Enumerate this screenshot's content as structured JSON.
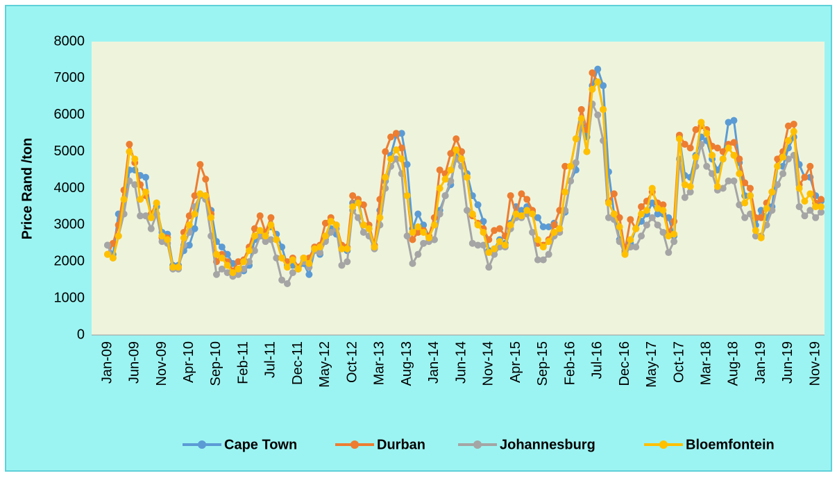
{
  "chart_data": {
    "type": "line",
    "ylabel": "Price Rand /ton",
    "ylim": [
      0,
      8000
    ],
    "yticks": [
      0,
      1000,
      2000,
      3000,
      4000,
      5000,
      6000,
      7000,
      8000
    ],
    "grid": false,
    "legend": "bottom",
    "categories": [
      "Jan-09",
      null,
      null,
      null,
      null,
      "Jun-09",
      null,
      null,
      null,
      null,
      "Nov-09",
      null,
      null,
      null,
      null,
      "Apr-10",
      null,
      null,
      null,
      null,
      "Sep-10",
      null,
      null,
      null,
      null,
      "Feb-11",
      null,
      null,
      null,
      null,
      "Jul-11",
      null,
      null,
      null,
      null,
      "Dec-11",
      null,
      null,
      null,
      null,
      "May-12",
      null,
      null,
      null,
      null,
      "Oct-12",
      null,
      null,
      null,
      null,
      "Mar-13",
      null,
      null,
      null,
      null,
      "Aug-13",
      null,
      null,
      null,
      null,
      "Jan-14",
      null,
      null,
      null,
      null,
      "Jun-14",
      null,
      null,
      null,
      null,
      "Nov-14",
      null,
      null,
      null,
      null,
      "Apr-15",
      null,
      null,
      null,
      null,
      "Sep-15",
      null,
      null,
      null,
      null,
      "Feb-16",
      null,
      null,
      null,
      null,
      "Jul-16",
      null,
      null,
      null,
      null,
      "Dec-16",
      null,
      null,
      null,
      null,
      "May-17",
      null,
      null,
      null,
      null,
      "Oct-17",
      null,
      null,
      null,
      null,
      "Mar-18",
      null,
      null,
      null,
      null,
      "Aug-18",
      null,
      null,
      null,
      null,
      "Jan-19",
      null,
      null,
      null,
      null,
      "Jun-19",
      null,
      null,
      null,
      null,
      "Nov-19",
      null
    ],
    "series": [
      {
        "name": "Cape Town",
        "color": "#5b9bd5",
        "values": [
          2450,
          2200,
          3300,
          3300,
          4500,
          4500,
          4350,
          4300,
          3200,
          3500,
          2800,
          2750,
          1900,
          1900,
          2300,
          2450,
          2900,
          3800,
          3800,
          3400,
          2550,
          2400,
          2200,
          1950,
          1750,
          1750,
          1900,
          2600,
          2800,
          2800,
          2950,
          2750,
          2400,
          1900,
          1900,
          1800,
          1950,
          1650,
          2300,
          2200,
          2600,
          2900,
          2750,
          2400,
          2300,
          3600,
          3700,
          3000,
          2900,
          2400,
          3400,
          4200,
          4900,
          5450,
          5500,
          4650,
          2900,
          3300,
          3000,
          2700,
          2600,
          3400,
          3800,
          4100,
          4900,
          5000,
          4400,
          3800,
          3550,
          3100,
          2300,
          2350,
          2600,
          2500,
          3050,
          3500,
          3400,
          3500,
          3350,
          3200,
          2950,
          2950,
          3050,
          2900,
          3350,
          4200,
          4500,
          5700,
          5400,
          6800,
          7250,
          6800,
          4450,
          3300,
          2600,
          2250,
          2500,
          2900,
          3100,
          3300,
          3600,
          3300,
          3300,
          3200,
          2700,
          5400,
          4350,
          4300,
          4900,
          5400,
          5300,
          4800,
          4500,
          4800,
          5800,
          5850,
          4700,
          3800,
          3800,
          3000,
          3400,
          3200,
          3500,
          4600,
          4600,
          5100,
          5400,
          4650,
          4300,
          4300,
          3800,
          3650
        ]
      },
      {
        "name": "Durban",
        "color": "#ed7d31",
        "values": [
          2200,
          2500,
          3000,
          3950,
          5200,
          4700,
          4100,
          3800,
          3300,
          3600,
          2650,
          2650,
          1850,
          1850,
          2800,
          3250,
          3800,
          4650,
          4250,
          3300,
          2000,
          2200,
          2000,
          1750,
          2000,
          2050,
          2400,
          2900,
          3250,
          2800,
          3200,
          2600,
          2100,
          2000,
          2100,
          1850,
          2100,
          2100,
          2400,
          2450,
          3050,
          3200,
          3000,
          2450,
          2400,
          3800,
          3700,
          3550,
          3000,
          2450,
          3700,
          5000,
          5400,
          5500,
          5100,
          3800,
          2600,
          2800,
          2850,
          2700,
          3200,
          4500,
          4400,
          4950,
          5350,
          5000,
          4300,
          3250,
          3050,
          2900,
          2600,
          2850,
          2900,
          2700,
          3800,
          3300,
          3850,
          3700,
          3400,
          2500,
          2450,
          2600,
          3000,
          3400,
          4600,
          4600,
          5350,
          6150,
          5600,
          7150,
          6900,
          6150,
          3650,
          3850,
          3200,
          2300,
          3150,
          2900,
          3500,
          3650,
          3900,
          3600,
          3550,
          2800,
          3100,
          5450,
          5200,
          5100,
          5600,
          5700,
          5600,
          5150,
          5100,
          5000,
          5200,
          5250,
          4800,
          4150,
          4000,
          3200,
          3200,
          3600,
          3900,
          4800,
          5000,
          5700,
          5750,
          4100,
          4300,
          4600,
          3600,
          3700
        ]
      },
      {
        "name": "Johannesburg",
        "color": "#a5a5a5",
        "values": [
          2450,
          2100,
          2700,
          3300,
          4200,
          4100,
          3250,
          3250,
          2900,
          3300,
          2550,
          2500,
          1800,
          1800,
          2450,
          2800,
          3500,
          3800,
          3700,
          2700,
          1650,
          1800,
          1700,
          1600,
          1650,
          1800,
          2000,
          2300,
          2700,
          2550,
          2600,
          2100,
          1500,
          1400,
          1700,
          1800,
          2000,
          1850,
          2300,
          2250,
          2550,
          2800,
          2900,
          1900,
          2000,
          3400,
          3200,
          2800,
          2700,
          2350,
          3000,
          4000,
          4600,
          4800,
          4400,
          2700,
          1950,
          2200,
          2500,
          2550,
          2600,
          3300,
          3800,
          4200,
          4800,
          4600,
          3400,
          2500,
          2450,
          2450,
          1850,
          2200,
          2400,
          2400,
          2900,
          3200,
          3200,
          3300,
          2800,
          2050,
          2050,
          2200,
          2700,
          2800,
          3400,
          4200,
          4700,
          5800,
          5000,
          6300,
          6000,
          5300,
          3200,
          3150,
          2550,
          2200,
          2400,
          2400,
          2700,
          3000,
          3200,
          3000,
          2800,
          2250,
          2550,
          4800,
          3750,
          3900,
          4600,
          5200,
          4600,
          4400,
          3950,
          4000,
          4200,
          4200,
          3550,
          3200,
          3300,
          2700,
          2700,
          3000,
          3400,
          4100,
          4400,
          4800,
          4900,
          3500,
          3250,
          3400,
          3200,
          3350
        ]
      },
      {
        "name": "Bloemfontein",
        "color": "#ffc000",
        "values": [
          2200,
          2100,
          2700,
          3700,
          5000,
          4800,
          3700,
          3900,
          3200,
          3600,
          2700,
          2600,
          1850,
          1850,
          2650,
          3000,
          3300,
          3850,
          3800,
          3200,
          2200,
          2100,
          1900,
          1700,
          1800,
          2000,
          2300,
          2700,
          2850,
          2700,
          3000,
          2600,
          2100,
          1850,
          2050,
          1800,
          2100,
          1950,
          2350,
          2400,
          2700,
          3100,
          3000,
          2350,
          2350,
          3500,
          3600,
          3000,
          2900,
          2400,
          3200,
          4300,
          4800,
          5050,
          4800,
          3800,
          2800,
          2950,
          2800,
          2650,
          3000,
          4000,
          4250,
          4500,
          5050,
          4800,
          4300,
          3300,
          3000,
          2800,
          2250,
          2350,
          2550,
          2450,
          3000,
          3300,
          3250,
          3400,
          3300,
          2600,
          2400,
          2550,
          2800,
          2900,
          3900,
          4600,
          5350,
          5900,
          5000,
          6700,
          6900,
          6150,
          3600,
          3300,
          2950,
          2200,
          2600,
          2900,
          3300,
          3400,
          4000,
          3450,
          3400,
          2700,
          2750,
          5350,
          4100,
          4050,
          4850,
          5800,
          5500,
          4900,
          4050,
          4800,
          5100,
          4900,
          4400,
          3600,
          3800,
          2850,
          2650,
          3450,
          3900,
          4600,
          4850,
          5300,
          5550,
          4000,
          3650,
          3850,
          3500,
          3500
        ]
      }
    ]
  }
}
